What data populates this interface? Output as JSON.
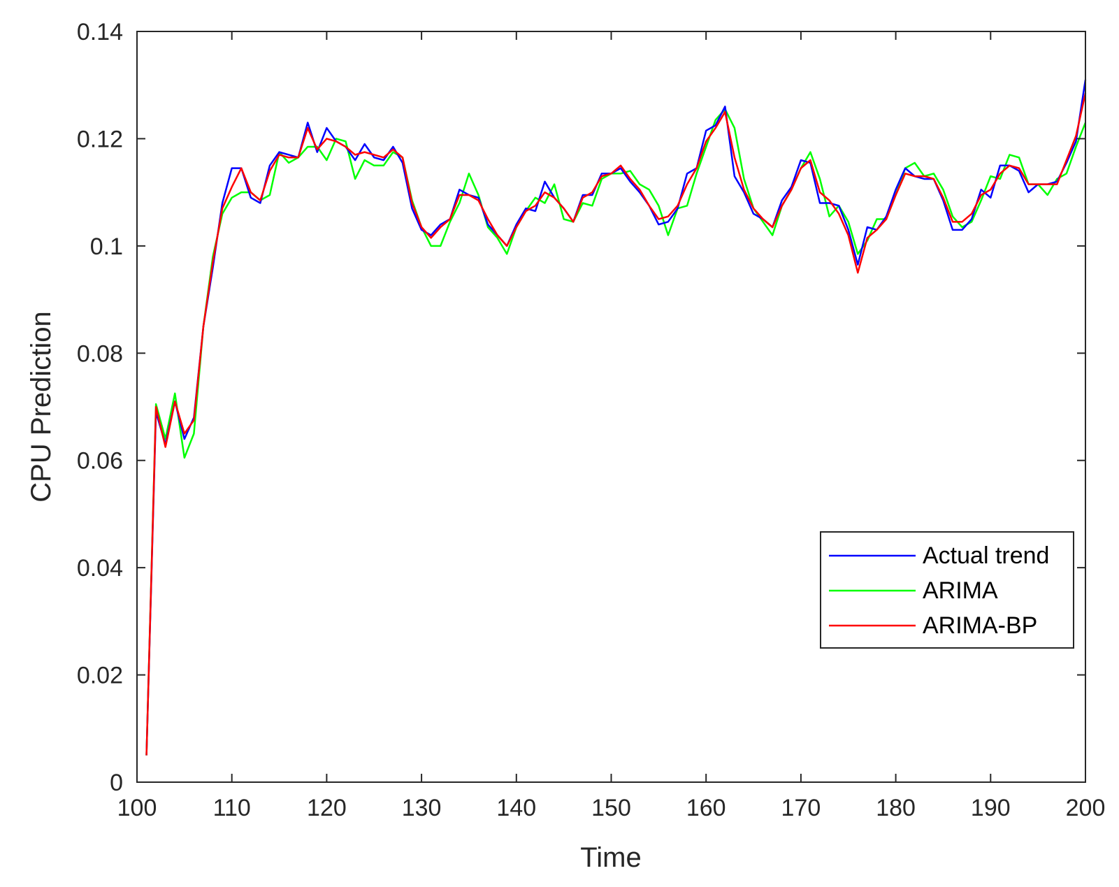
{
  "chart_data": {
    "type": "line",
    "xlabel": "Time",
    "ylabel": "CPU Prediction",
    "xlim": [
      100,
      200
    ],
    "ylim": [
      0,
      0.14
    ],
    "x_ticks": [
      "100",
      "110",
      "120",
      "130",
      "140",
      "150",
      "160",
      "170",
      "180",
      "190",
      "200"
    ],
    "y_ticks": [
      "0",
      "0.02",
      "0.04",
      "0.06",
      "0.08",
      "0.1",
      "0.12",
      "0.14"
    ],
    "grid": false,
    "legend_position": "lower-right",
    "x": [
      101,
      102,
      103,
      104,
      105,
      106,
      107,
      108,
      109,
      110,
      111,
      112,
      113,
      114,
      115,
      116,
      117,
      118,
      119,
      120,
      121,
      122,
      123,
      124,
      125,
      126,
      127,
      128,
      129,
      130,
      131,
      132,
      133,
      134,
      135,
      136,
      137,
      138,
      139,
      140,
      141,
      142,
      143,
      144,
      145,
      146,
      147,
      148,
      149,
      150,
      151,
      152,
      153,
      154,
      155,
      156,
      157,
      158,
      159,
      160,
      161,
      162,
      163,
      164,
      165,
      166,
      167,
      168,
      169,
      170,
      171,
      172,
      173,
      174,
      175,
      176,
      177,
      178,
      179,
      180,
      181,
      182,
      183,
      184,
      185,
      186,
      187,
      188,
      189,
      190,
      191,
      192,
      193,
      194,
      195,
      196,
      197,
      198,
      199,
      200
    ],
    "series": [
      {
        "name": "Actual trend",
        "color": "#0000ff",
        "values": [
          0.005,
          0.069,
          0.063,
          0.071,
          0.064,
          0.068,
          0.085,
          0.096,
          0.108,
          0.1145,
          0.1145,
          0.109,
          0.108,
          0.115,
          0.1175,
          0.117,
          0.1165,
          0.123,
          0.1175,
          0.122,
          0.1195,
          0.1185,
          0.116,
          0.119,
          0.1165,
          0.116,
          0.1185,
          0.1155,
          0.107,
          0.103,
          0.102,
          0.104,
          0.105,
          0.1105,
          0.1095,
          0.109,
          0.104,
          0.102,
          0.1,
          0.104,
          0.107,
          0.1065,
          0.112,
          0.109,
          0.107,
          0.1045,
          0.1095,
          0.1095,
          0.1135,
          0.1135,
          0.1145,
          0.112,
          0.11,
          0.1075,
          0.104,
          0.1045,
          0.107,
          0.1135,
          0.1145,
          0.1215,
          0.1225,
          0.126,
          0.113,
          0.11,
          0.106,
          0.105,
          0.1035,
          0.1085,
          0.111,
          0.116,
          0.1155,
          0.108,
          0.108,
          0.1075,
          0.103,
          0.0965,
          0.1035,
          0.103,
          0.1055,
          0.1105,
          0.1145,
          0.113,
          0.1125,
          0.1125,
          0.1085,
          0.103,
          0.103,
          0.105,
          0.1105,
          0.109,
          0.115,
          0.115,
          0.114,
          0.11,
          0.1115,
          0.1115,
          0.112,
          0.1155,
          0.1195,
          0.131
        ]
      },
      {
        "name": "ARIMA",
        "color": "#00ff00",
        "values": [
          0.005,
          0.0705,
          0.064,
          0.0725,
          0.0605,
          0.065,
          0.085,
          0.098,
          0.106,
          0.109,
          0.11,
          0.11,
          0.1085,
          0.1095,
          0.1175,
          0.1155,
          0.1165,
          0.1185,
          0.1185,
          0.116,
          0.12,
          0.1195,
          0.1125,
          0.116,
          0.115,
          0.115,
          0.1175,
          0.1165,
          0.1085,
          0.1035,
          0.1,
          0.1,
          0.1045,
          0.108,
          0.1135,
          0.1095,
          0.1035,
          0.1015,
          0.0985,
          0.1035,
          0.1065,
          0.109,
          0.108,
          0.1115,
          0.105,
          0.1045,
          0.108,
          0.1075,
          0.1125,
          0.1135,
          0.1135,
          0.114,
          0.1115,
          0.1105,
          0.1075,
          0.102,
          0.107,
          0.1075,
          0.1135,
          0.1185,
          0.1235,
          0.1255,
          0.122,
          0.1125,
          0.107,
          0.1045,
          0.102,
          0.1075,
          0.1105,
          0.1145,
          0.1175,
          0.1125,
          0.1055,
          0.1075,
          0.1045,
          0.0985,
          0.101,
          0.105,
          0.105,
          0.1095,
          0.1145,
          0.1155,
          0.113,
          0.1135,
          0.1105,
          0.1055,
          0.1035,
          0.1045,
          0.1085,
          0.113,
          0.1125,
          0.117,
          0.1165,
          0.1115,
          0.1115,
          0.1095,
          0.1125,
          0.1135,
          0.1185,
          0.123
        ]
      },
      {
        "name": "ARIMA-BP",
        "color": "#ff0000",
        "values": [
          0.005,
          0.07,
          0.0625,
          0.071,
          0.065,
          0.0675,
          0.085,
          0.097,
          0.107,
          0.111,
          0.1145,
          0.11,
          0.1085,
          0.114,
          0.117,
          0.1165,
          0.1165,
          0.122,
          0.118,
          0.12,
          0.1195,
          0.1185,
          0.117,
          0.1175,
          0.117,
          0.1165,
          0.118,
          0.1165,
          0.108,
          0.1035,
          0.1015,
          0.1035,
          0.105,
          0.1095,
          0.1095,
          0.1085,
          0.105,
          0.102,
          0.1,
          0.1035,
          0.1065,
          0.1075,
          0.11,
          0.109,
          0.107,
          0.1045,
          0.109,
          0.11,
          0.113,
          0.1135,
          0.115,
          0.1125,
          0.1105,
          0.1075,
          0.105,
          0.1055,
          0.1075,
          0.1115,
          0.1145,
          0.1195,
          0.122,
          0.125,
          0.1165,
          0.1105,
          0.107,
          0.105,
          0.1035,
          0.1075,
          0.1105,
          0.1145,
          0.116,
          0.11,
          0.1085,
          0.106,
          0.102,
          0.095,
          0.1015,
          0.103,
          0.105,
          0.1095,
          0.1135,
          0.113,
          0.113,
          0.1125,
          0.109,
          0.1045,
          0.1045,
          0.106,
          0.1095,
          0.1105,
          0.1135,
          0.115,
          0.1145,
          0.1115,
          0.1115,
          0.1115,
          0.1115,
          0.116,
          0.1205,
          0.1285
        ]
      }
    ]
  }
}
